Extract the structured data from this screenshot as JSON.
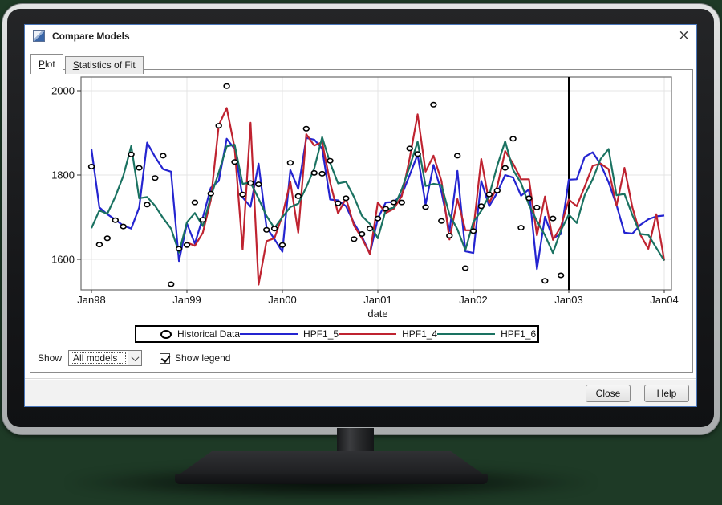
{
  "window": {
    "title": "Compare Models"
  },
  "icons": {
    "close": "×"
  },
  "tabs": [
    {
      "label": "Plot",
      "active": true
    },
    {
      "label": "Statistics of Fit",
      "active": false
    }
  ],
  "controls": {
    "show_label": "Show",
    "show_value": "All models",
    "legend_checkbox_label": "Show legend",
    "legend_checkbox_checked": true
  },
  "buttons": {
    "close": "Close",
    "help": "Help"
  },
  "chart_data": {
    "type": "line",
    "title": "",
    "xlabel": "date",
    "ylabel": "",
    "x_tick_labels": [
      "Jan98",
      "Jan99",
      "Jan00",
      "Jan01",
      "Jan02",
      "Jan03",
      "Jan04"
    ],
    "months_per_tick": 12,
    "y_ticks": [
      1600,
      1800,
      2000
    ],
    "ylim": [
      1528,
      2032
    ],
    "grid": true,
    "reference_line_month": 60,
    "legend_position": "bottom",
    "series": [
      {
        "name": "Historical Data",
        "type": "scatter",
        "color": "#000000",
        "start_month": 0,
        "values": [
          1820,
          1635,
          1650,
          1693,
          1678,
          1849,
          1817,
          1730,
          1793,
          1846,
          1541,
          1625,
          1634,
          1735,
          1694,
          1756,
          1917,
          2011,
          1831,
          1754,
          1781,
          1778,
          1670,
          1673,
          1634,
          1829,
          1750,
          1910,
          1805,
          1803,
          1834,
          1733,
          1745,
          1648,
          1660,
          1673,
          1697,
          1720,
          1735,
          1735,
          1863,
          1850,
          1724,
          1967,
          1691,
          1656,
          1846,
          1579,
          1667,
          1726,
          1754,
          1763,
          1817,
          1886,
          1675,
          1745,
          1723,
          1549,
          1697,
          1562
        ]
      },
      {
        "name": "HPF1_5",
        "type": "line",
        "color": "#2424d0",
        "start_month": 0,
        "values": [
          1862,
          1723,
          1707,
          1694,
          1680,
          1673,
          1723,
          1877,
          1843,
          1814,
          1808,
          1596,
          1685,
          1637,
          1699,
          1770,
          1786,
          1886,
          1862,
          1747,
          1725,
          1827,
          1676,
          1648,
          1618,
          1812,
          1767,
          1888,
          1884,
          1863,
          1742,
          1740,
          1726,
          1686,
          1654,
          1613,
          1697,
          1735,
          1736,
          1753,
          1800,
          1849,
          1730,
          1824,
          1760,
          1667,
          1810,
          1619,
          1615,
          1786,
          1726,
          1758,
          1800,
          1794,
          1751,
          1766,
          1577,
          1701,
          1650,
          1660,
          1789,
          1790,
          1843,
          1854,
          1826,
          1783,
          1729,
          1663,
          1661,
          1682,
          1695,
          1702,
          1704
        ]
      },
      {
        "name": "HPF1_4",
        "type": "line",
        "color": "#bf2330",
        "start_month": 12,
        "values": [
          1640,
          1632,
          1663,
          1741,
          1918,
          1959,
          1864,
          1623,
          1924,
          1540,
          1643,
          1650,
          1704,
          1784,
          1663,
          1897,
          1870,
          1878,
          1782,
          1709,
          1745,
          1680,
          1650,
          1613,
          1735,
          1710,
          1720,
          1750,
          1840,
          1944,
          1808,
          1846,
          1786,
          1647,
          1743,
          1669,
          1669,
          1838,
          1734,
          1772,
          1857,
          1827,
          1790,
          1790,
          1657,
          1749,
          1646,
          1677,
          1742,
          1726,
          1772,
          1822,
          1827,
          1814,
          1727,
          1817,
          1723,
          1658,
          1625,
          1707,
          1597
        ]
      },
      {
        "name": "HPF1_6",
        "type": "line",
        "color": "#1a7261",
        "start_month": 0,
        "values": [
          1674,
          1716,
          1708,
          1749,
          1798,
          1869,
          1745,
          1748,
          1727,
          1698,
          1673,
          1616,
          1688,
          1710,
          1679,
          1749,
          1806,
          1868,
          1872,
          1779,
          1782,
          1744,
          1703,
          1674,
          1700,
          1724,
          1732,
          1771,
          1815,
          1890,
          1829,
          1780,
          1784,
          1748,
          1703,
          1684,
          1650,
          1717,
          1723,
          1766,
          1820,
          1879,
          1774,
          1779,
          1776,
          1706,
          1671,
          1622,
          1689,
          1715,
          1752,
          1822,
          1880,
          1812,
          1781,
          1729,
          1691,
          1657,
          1615,
          1668,
          1706,
          1686,
          1752,
          1790,
          1838,
          1862,
          1752,
          1755,
          1705,
          1660,
          1658,
          1627,
          1597
        ]
      }
    ]
  }
}
